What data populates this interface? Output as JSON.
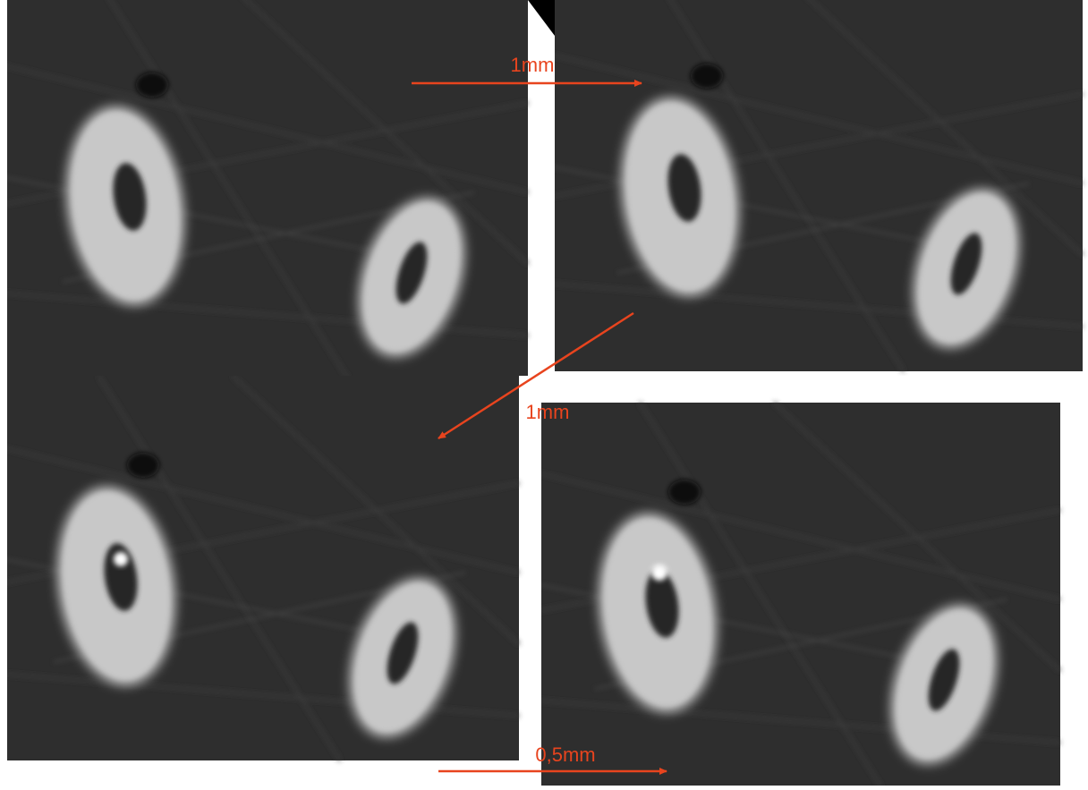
{
  "annotations": [
    {
      "label": "1mm"
    },
    {
      "label": "1mm"
    },
    {
      "label": "0,5mm"
    }
  ]
}
